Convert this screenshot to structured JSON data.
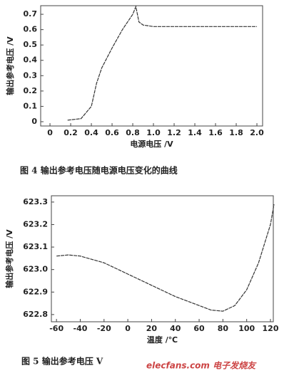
{
  "chart_data": [
    {
      "type": "line",
      "caption": "图 4   输出参考电压随电源电压变化的曲线",
      "x_label": "电源电压 /V",
      "y_label": "输出参考电压 /V",
      "x": [
        0.17,
        0.3,
        0.4,
        0.45,
        0.5,
        0.6,
        0.7,
        0.8,
        0.83,
        0.86,
        0.9,
        1.0,
        2.0
      ],
      "series": [
        {
          "name": "输出参考电压",
          "color": "#333333",
          "values": [
            0.01,
            0.02,
            0.1,
            0.25,
            0.35,
            0.48,
            0.6,
            0.7,
            0.75,
            0.65,
            0.63,
            0.62,
            0.62
          ]
        }
      ],
      "xlim": [
        -0.09,
        2.055
      ],
      "ylim": [
        -0.028,
        0.756
      ],
      "xticks": [
        0,
        0.2,
        0.4,
        0.6,
        0.8,
        {
          "value": 1,
          "label": "1.0"
        },
        1.2,
        1.4,
        1.6,
        1.8,
        {
          "value": 2,
          "label": "2.0"
        }
      ],
      "yticks": [
        0,
        0.1,
        0.2,
        0.3,
        0.4,
        0.5,
        0.6,
        0.7
      ]
    },
    {
      "type": "line",
      "caption": "图 5   输出参考电压 V",
      "x_label": "温度 /℃",
      "y_label": "输出参考电压 /V",
      "x": [
        -60,
        -50,
        -40,
        -20,
        0,
        20,
        40,
        60,
        70,
        80,
        90,
        100,
        110,
        120,
        123
      ],
      "series": [
        {
          "name": "输出参考电压",
          "color": "#333333",
          "values": [
            623.06,
            623.065,
            623.06,
            623.03,
            622.98,
            622.93,
            622.88,
            622.84,
            622.82,
            622.815,
            622.84,
            622.91,
            623.03,
            623.2,
            623.29
          ]
        }
      ],
      "xlim": [
        -64.3,
        122.4
      ],
      "ylim": [
        622.768,
        623.328
      ],
      "xticks": [
        -60,
        -40,
        -20,
        0,
        20,
        40,
        60,
        80,
        100,
        120
      ],
      "yticks": [
        622.8,
        622.9,
        {
          "value": 623,
          "label": "623.0"
        },
        623.1,
        623.2,
        623.3
      ]
    }
  ],
  "watermark": "elecfans.com 电子发烧友"
}
